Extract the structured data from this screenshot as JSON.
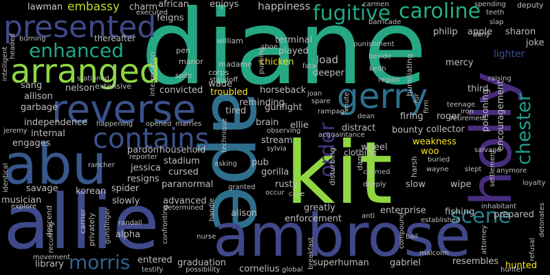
{
  "background": "#000000",
  "words": [
    {
      "text": "diane",
      "color": "#26a884"
    },
    {
      "text": "ape",
      "color": "#2f6f8e"
    },
    {
      "text": "kit",
      "color": "#90d743"
    },
    {
      "text": "allie",
      "color": "#3e4a89"
    },
    {
      "text": "ambrose",
      "color": "#3f4889"
    },
    {
      "text": "abu",
      "color": "#38588c"
    },
    {
      "text": "holly",
      "color": "#482c7c"
    },
    {
      "text": "reverse",
      "color": "#3b518b"
    },
    {
      "text": "presented",
      "color": "#3f4a89"
    },
    {
      "text": "arranged",
      "color": "#8fd744"
    },
    {
      "text": "gerry",
      "color": "#2d708e"
    },
    {
      "text": "contains",
      "color": "#3b528b"
    },
    {
      "text": "enhanced",
      "color": "#22a785"
    },
    {
      "text": "caroline",
      "color": "#29af7f"
    },
    {
      "text": "fugitive",
      "color": "#22a884"
    },
    {
      "text": "scene",
      "color": "#26818e"
    },
    {
      "text": "order",
      "color": "#46327e"
    },
    {
      "text": "chester",
      "color": "#1e9b8a"
    },
    {
      "text": "morris",
      "color": "#34618d"
    },
    {
      "text": "embassy",
      "color": "#bddf26"
    },
    {
      "text": "lawman",
      "color": "#cccccc"
    },
    {
      "text": "african",
      "color": "#bfbfbf"
    },
    {
      "text": "charm",
      "color": "#bfbfbf"
    },
    {
      "text": "enjoys",
      "color": "#bfbfbf"
    },
    {
      "text": "happiness",
      "color": "#bfbfbf"
    },
    {
      "text": "philip",
      "color": "#bfbfbf"
    },
    {
      "text": "apple",
      "color": "#bfbfbf"
    },
    {
      "text": "sharon",
      "color": "#bfbfbf"
    },
    {
      "text": "joke",
      "color": "#bfbfbf"
    },
    {
      "text": "terminal",
      "color": "#bfbfbf"
    },
    {
      "text": "william",
      "color": "#bfbfbf"
    },
    {
      "text": "feigns",
      "color": "#bfbfbf"
    },
    {
      "text": "played",
      "color": "#bfbfbf"
    },
    {
      "text": "madame",
      "color": "#bfbfbf"
    },
    {
      "text": "chicken",
      "color": "#f1e51d"
    },
    {
      "text": "load",
      "color": "#bfbfbf"
    },
    {
      "text": "pen",
      "color": "#bfbfbf"
    },
    {
      "text": "manor",
      "color": "#bfbfbf"
    },
    {
      "text": "corps",
      "color": "#bfbfbf"
    },
    {
      "text": "lighter",
      "color": "#3b528b"
    },
    {
      "text": "mercy",
      "color": "#bfbfbf"
    },
    {
      "text": "deeper",
      "color": "#bfbfbf"
    },
    {
      "text": "humiliating",
      "color": "#bfbfbf"
    },
    {
      "text": "sang",
      "color": "#bfbfbf"
    },
    {
      "text": "nelson",
      "color": "#bfbfbf"
    },
    {
      "text": "extensive",
      "color": "#bfbfbf"
    },
    {
      "text": "convicted",
      "color": "#bfbfbf"
    },
    {
      "text": "wade",
      "color": "#bfbfbf"
    },
    {
      "text": "allison",
      "color": "#bfbfbf"
    },
    {
      "text": "troubled",
      "color": "#fde725"
    },
    {
      "text": "horseback",
      "color": "#bfbfbf"
    },
    {
      "text": "third",
      "color": "#bfbfbf"
    },
    {
      "text": "garbage",
      "color": "#bfbfbf"
    },
    {
      "text": "reminding",
      "color": "#bfbfbf"
    },
    {
      "text": "tired",
      "color": "#bfbfbf"
    },
    {
      "text": "gunfight",
      "color": "#bfbfbf"
    },
    {
      "text": "firing",
      "color": "#bfbfbf"
    },
    {
      "text": "roger",
      "color": "#bfbfbf"
    },
    {
      "text": "poisoning",
      "color": "#bfbfbf"
    },
    {
      "text": "encouragement",
      "color": "#bfbfbf"
    },
    {
      "text": "independence",
      "color": "#bfbfbf"
    },
    {
      "text": "brain",
      "color": "#bfbfbf"
    },
    {
      "text": "ellie",
      "color": "#bfbfbf"
    },
    {
      "text": "distract",
      "color": "#bfbfbf"
    },
    {
      "text": "bounty",
      "color": "#bfbfbf"
    },
    {
      "text": "collector",
      "color": "#bfbfbf"
    },
    {
      "text": "internal",
      "color": "#bfbfbf"
    },
    {
      "text": "engages",
      "color": "#bfbfbf"
    },
    {
      "text": "stream",
      "color": "#bfbfbf"
    },
    {
      "text": "weakness",
      "color": "#fde725"
    },
    {
      "text": "pardon",
      "color": "#bfbfbf"
    },
    {
      "text": "household",
      "color": "#bfbfbf"
    },
    {
      "text": "wheel",
      "color": "#bfbfbf"
    },
    {
      "text": "woo",
      "color": "#fde725"
    },
    {
      "text": "stadium",
      "color": "#bfbfbf"
    },
    {
      "text": "pub",
      "color": "#bfbfbf"
    },
    {
      "text": "gorilla",
      "color": "#bfbfbf"
    },
    {
      "text": "harsh",
      "color": "#bfbfbf"
    },
    {
      "text": "jessica",
      "color": "#bfbfbf"
    },
    {
      "text": "cursed",
      "color": "#bfbfbf"
    },
    {
      "text": "resigns",
      "color": "#bfbfbf"
    },
    {
      "text": "paranormal",
      "color": "#bfbfbf"
    },
    {
      "text": "rusty",
      "color": "#bfbfbf"
    },
    {
      "text": "slow",
      "color": "#bfbfbf"
    },
    {
      "text": "wipe",
      "color": "#bfbfbf"
    },
    {
      "text": "savage",
      "color": "#bfbfbf"
    },
    {
      "text": "korean",
      "color": "#bfbfbf"
    },
    {
      "text": "spider",
      "color": "#bfbfbf"
    },
    {
      "text": "musician",
      "color": "#bfbfbf"
    },
    {
      "text": "slowly",
      "color": "#bfbfbf"
    },
    {
      "text": "advanced",
      "color": "#bfbfbf"
    },
    {
      "text": "greatly",
      "color": "#bfbfbf"
    },
    {
      "text": "enterprise",
      "color": "#bfbfbf"
    },
    {
      "text": "fishing",
      "color": "#bfbfbf"
    },
    {
      "text": "prepared",
      "color": "#bfbfbf"
    },
    {
      "text": "descend",
      "color": "#bfbfbf"
    },
    {
      "text": "alpha",
      "color": "#bfbfbf"
    },
    {
      "text": "enforcement",
      "color": "#bfbfbf"
    },
    {
      "text": "library",
      "color": "#bfbfbf"
    },
    {
      "text": "entered",
      "color": "#bfbfbf"
    },
    {
      "text": "graduation",
      "color": "#bfbfbf"
    },
    {
      "text": "superhuman",
      "color": "#bfbfbf"
    },
    {
      "text": "gabriel",
      "color": "#bfbfbf"
    },
    {
      "text": "resembles",
      "color": "#bfbfbf"
    },
    {
      "text": "hunted",
      "color": "#fde725"
    },
    {
      "text": "cornelius",
      "color": "#bfbfbf"
    },
    {
      "text": "alison",
      "color": "#bfbfbf"
    },
    {
      "text": "carrier",
      "color": "#bfbfbf"
    },
    {
      "text": "privately",
      "color": "#bfbfbf"
    },
    {
      "text": "dam",
      "color": "#bfbfbf"
    },
    {
      "text": "clothing",
      "color": "#bfbfbf"
    },
    {
      "text": "disturbing",
      "color": "#bfbfbf"
    },
    {
      "text": "mute",
      "color": "#bfbfbf"
    },
    {
      "text": "punishment",
      "color": "#bfbfbf"
    },
    {
      "text": "deputy",
      "color": "#bfbfbf"
    },
    {
      "text": "spending",
      "color": "#bfbfbf"
    },
    {
      "text": "teeth",
      "color": "#bfbfbf"
    },
    {
      "text": "carmen",
      "color": "#bfbfbf"
    },
    {
      "text": "barricade",
      "color": "#bfbfbf"
    },
    {
      "text": "slap",
      "color": "#bfbfbf"
    },
    {
      "text": "deny",
      "color": "#bfbfbf"
    },
    {
      "text": "executed",
      "color": "#bfbfbf"
    },
    {
      "text": "thereafter",
      "color": "#bfbfbf"
    },
    {
      "text": "burning",
      "color": "#bfbfbf"
    },
    {
      "text": "headed",
      "color": "#bfbfbf"
    },
    {
      "text": "intelligent",
      "color": "#bfbfbf"
    },
    {
      "text": "stationed",
      "color": "#bfbfbf"
    },
    {
      "text": "interrogation",
      "color": "#bfbfbf"
    },
    {
      "text": "spite",
      "color": "#bfbfbf"
    },
    {
      "text": "shoe",
      "color": "#bfbfbf"
    },
    {
      "text": "pushing",
      "color": "#bfbfbf"
    },
    {
      "text": "standoff",
      "color": "#bfbfbf"
    },
    {
      "text": "fatal",
      "color": "#bfbfbf"
    },
    {
      "text": "keith",
      "color": "#bfbfbf"
    },
    {
      "text": "beside",
      "color": "#bfbfbf"
    },
    {
      "text": "region",
      "color": "#bfbfbf"
    },
    {
      "text": "raising",
      "color": "#bfbfbf"
    },
    {
      "text": "joan",
      "color": "#bfbfbf"
    },
    {
      "text": "spare",
      "color": "#bfbfbf"
    },
    {
      "text": "fur",
      "color": "#bfbfbf"
    },
    {
      "text": "firm",
      "color": "#bfbfbf"
    },
    {
      "text": "teenage",
      "color": "#bfbfbf"
    },
    {
      "text": "iron",
      "color": "#bfbfbf"
    },
    {
      "text": "retirement",
      "color": "#bfbfbf"
    },
    {
      "text": "dean",
      "color": "#bfbfbf"
    },
    {
      "text": "rampage",
      "color": "#bfbfbf"
    },
    {
      "text": "jeremy",
      "color": "#bfbfbf"
    },
    {
      "text": "happening",
      "color": "#bfbfbf"
    },
    {
      "text": "opened",
      "color": "#bfbfbf"
    },
    {
      "text": "marries",
      "color": "#bfbfbf"
    },
    {
      "text": "observing",
      "color": "#bfbfbf"
    },
    {
      "text": "acquaintance",
      "color": "#bfbfbf"
    },
    {
      "text": "rancher",
      "color": "#bfbfbf"
    },
    {
      "text": "reporter",
      "color": "#bfbfbf"
    },
    {
      "text": "technique",
      "color": "#bfbfbf"
    },
    {
      "text": "sylvia",
      "color": "#bfbfbf"
    },
    {
      "text": "asking",
      "color": "#bfbfbf"
    },
    {
      "text": "buried",
      "color": "#bfbfbf"
    },
    {
      "text": "wayne",
      "color": "#bfbfbf"
    },
    {
      "text": "slept",
      "color": "#bfbfbf"
    },
    {
      "text": "salvage",
      "color": "#bfbfbf"
    },
    {
      "text": "anymore",
      "color": "#bfbfbf"
    },
    {
      "text": "settlement",
      "color": "#bfbfbf"
    },
    {
      "text": "loyalty",
      "color": "#bfbfbf"
    },
    {
      "text": "identical",
      "color": "#bfbfbf"
    },
    {
      "text": "claimed",
      "color": "#bfbfbf"
    },
    {
      "text": "deeply",
      "color": "#bfbfbf"
    },
    {
      "text": "granted",
      "color": "#bfbfbf"
    },
    {
      "text": "occur",
      "color": "#bfbfbf"
    },
    {
      "text": "cake",
      "color": "#bfbfbf"
    },
    {
      "text": "explore",
      "color": "#bfbfbf"
    },
    {
      "text": "determined",
      "color": "#bfbfbf"
    },
    {
      "text": "handle",
      "color": "#bfbfbf"
    },
    {
      "text": "anti",
      "color": "#bfbfbf"
    },
    {
      "text": "inhabitant",
      "color": "#bfbfbf"
    },
    {
      "text": "established",
      "color": "#bfbfbf"
    },
    {
      "text": "detonates",
      "color": "#bfbfbf"
    },
    {
      "text": "recurring",
      "color": "#bfbfbf"
    },
    {
      "text": "gunslinger",
      "color": "#bfbfbf"
    },
    {
      "text": "randall",
      "color": "#bfbfbf"
    },
    {
      "text": "confronting",
      "color": "#bfbfbf"
    },
    {
      "text": "nurse",
      "color": "#bfbfbf"
    },
    {
      "text": "bail",
      "color": "#bfbfbf"
    },
    {
      "text": "malcolm",
      "color": "#bfbfbf"
    },
    {
      "text": "compound",
      "color": "#bfbfbf"
    },
    {
      "text": "attorney",
      "color": "#bfbfbf"
    },
    {
      "text": "refusal",
      "color": "#bfbfbf"
    },
    {
      "text": "movement",
      "color": "#bfbfbf"
    },
    {
      "text": "testify",
      "color": "#bfbfbf"
    },
    {
      "text": "possibility",
      "color": "#bfbfbf"
    },
    {
      "text": "global",
      "color": "#bfbfbf"
    },
    {
      "text": "breakfast",
      "color": "#bfbfbf"
    },
    {
      "text": "hunter",
      "color": "#bfbfbf"
    }
  ]
}
